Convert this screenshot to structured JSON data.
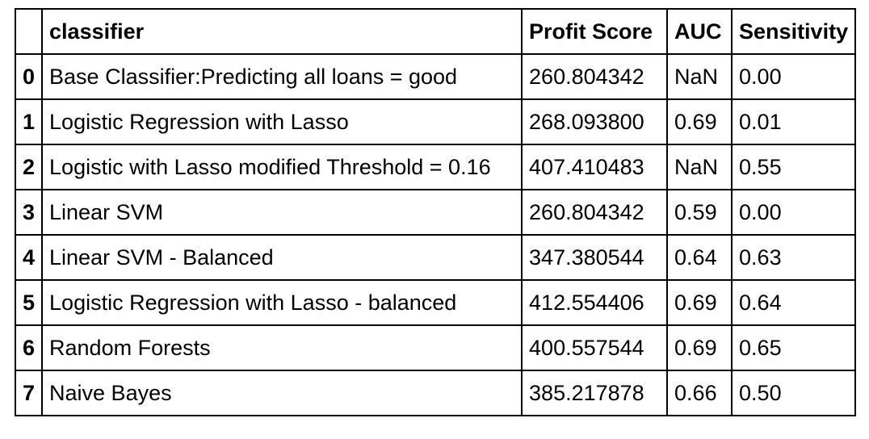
{
  "table": {
    "headers": {
      "index": "",
      "classifier": "classifier",
      "profit": "Profit Score",
      "auc": "AUC",
      "sensitivity": "Sensitivity"
    },
    "rows": [
      {
        "index": "0",
        "classifier": "Base Classifier:Predicting all loans = good",
        "profit": "260.804342",
        "auc": "NaN",
        "sensitivity": "0.00"
      },
      {
        "index": "1",
        "classifier": "Logistic Regression with Lasso",
        "profit": "268.093800",
        "auc": "0.69",
        "sensitivity": "0.01"
      },
      {
        "index": "2",
        "classifier": "Logistic with Lasso modified Threshold = 0.16",
        "profit": "407.410483",
        "auc": "NaN",
        "sensitivity": "0.55"
      },
      {
        "index": "3",
        "classifier": "Linear SVM",
        "profit": "260.804342",
        "auc": "0.59",
        "sensitivity": "0.00"
      },
      {
        "index": "4",
        "classifier": "Linear SVM - Balanced",
        "profit": "347.380544",
        "auc": "0.64",
        "sensitivity": "0.63"
      },
      {
        "index": "5",
        "classifier": "Logistic Regression with Lasso - balanced",
        "profit": "412.554406",
        "auc": "0.69",
        "sensitivity": "0.64"
      },
      {
        "index": "6",
        "classifier": "Random Forests",
        "profit": "400.557544",
        "auc": "0.69",
        "sensitivity": "0.65"
      },
      {
        "index": "7",
        "classifier": "Naive Bayes",
        "profit": "385.217878",
        "auc": "0.66",
        "sensitivity": "0.50"
      }
    ]
  }
}
